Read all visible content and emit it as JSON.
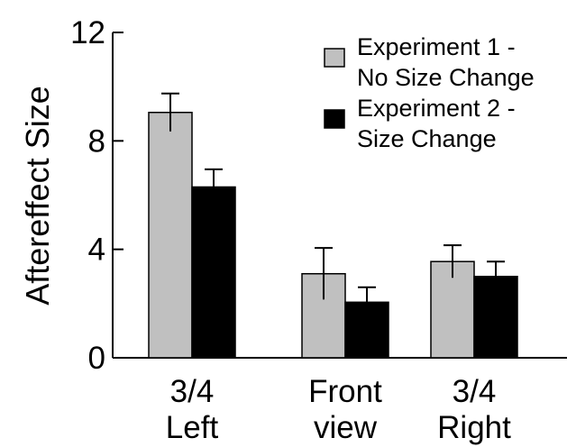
{
  "chart_data": {
    "type": "bar",
    "ylabel": "Aftereffect Size",
    "ylim": [
      0,
      12
    ],
    "yticks": [
      "0",
      "4",
      "8",
      "12"
    ],
    "categories": [
      [
        "3/4",
        "Left"
      ],
      [
        "Front",
        "view"
      ],
      [
        "3/4",
        "Right"
      ]
    ],
    "series": [
      {
        "name": [
          "Experiment 1 -",
          "No Size Change"
        ],
        "color": "#c0c0c0",
        "values": [
          9.05,
          3.1,
          3.55
        ],
        "errors": [
          0.7,
          0.95,
          0.6
        ]
      },
      {
        "name": [
          "Experiment 2 -",
          "Size Change"
        ],
        "color": "#000000",
        "values": [
          6.3,
          2.05,
          3.0
        ],
        "errors": [
          0.65,
          0.55,
          0.55
        ]
      }
    ],
    "legend_position": "top-right",
    "grid": false
  }
}
